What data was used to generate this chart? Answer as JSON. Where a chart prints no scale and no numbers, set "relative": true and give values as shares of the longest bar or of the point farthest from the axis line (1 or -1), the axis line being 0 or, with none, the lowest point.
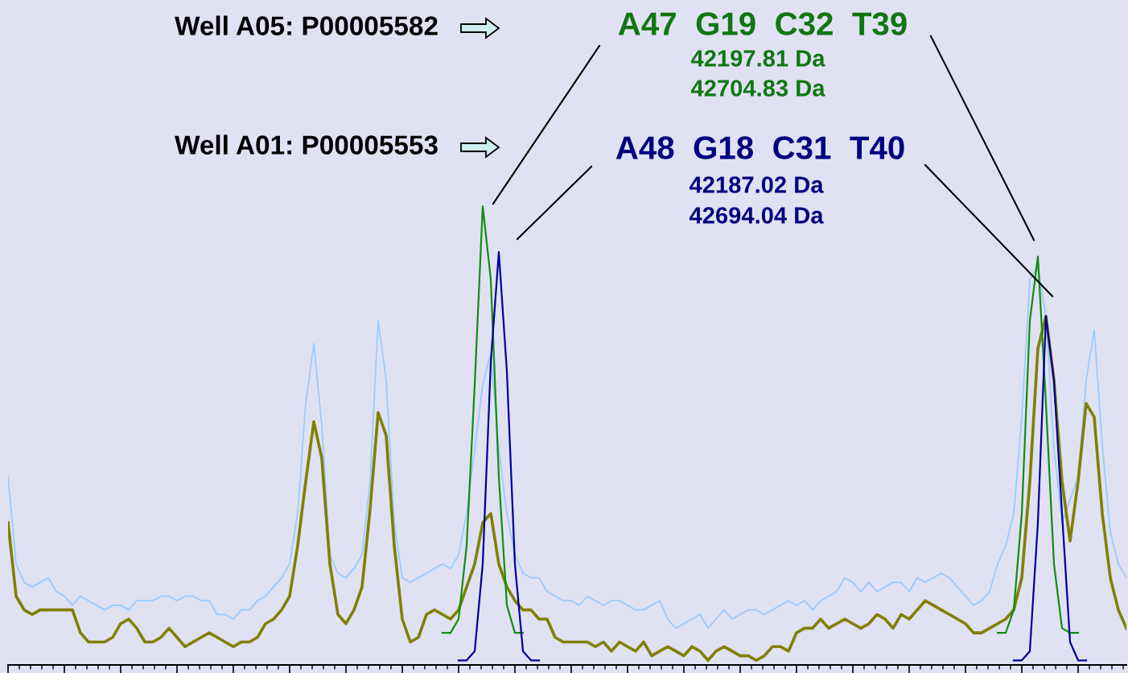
{
  "chart_data": {
    "type": "line",
    "relative": true,
    "grid": false,
    "marker": "none",
    "line_style": "solid",
    "categories": [
      null,
      null,
      null,
      null,
      null,
      null,
      null,
      null,
      null,
      null,
      null,
      null,
      null,
      null,
      null,
      null,
      null,
      null,
      null,
      null,
      null,
      null,
      null,
      null,
      null,
      null,
      null,
      null,
      null,
      null,
      null,
      null,
      null,
      null,
      null,
      null,
      null,
      null,
      null,
      null,
      null,
      null,
      null,
      null,
      null,
      null,
      null,
      null,
      null,
      null,
      null,
      null,
      null,
      null,
      null,
      null,
      null,
      null,
      null,
      null,
      null,
      null,
      null,
      null,
      null,
      null,
      null,
      null,
      null,
      null,
      null,
      null,
      null,
      null,
      null,
      null,
      null,
      null,
      null,
      null,
      null,
      null,
      null,
      null,
      null,
      null,
      null,
      null,
      null,
      null,
      null,
      null,
      null,
      null,
      null,
      null,
      null,
      null,
      null,
      null,
      null,
      null,
      null,
      null,
      null,
      null,
      null,
      null,
      null,
      null,
      null,
      null,
      null,
      null,
      null,
      null,
      null,
      null,
      null,
      null,
      null,
      null,
      null,
      null,
      null,
      null,
      null,
      null,
      null,
      null,
      null,
      null,
      null,
      null,
      null,
      null,
      null,
      null,
      null,
      null
    ],
    "series": [
      {
        "color": "#99ccff",
        "values": [
          0.41,
          0.22,
          0.18,
          0.17,
          0.18,
          0.19,
          0.16,
          0.15,
          0.13,
          0.15,
          0.14,
          0.13,
          0.12,
          0.13,
          0.13,
          0.12,
          0.14,
          0.14,
          0.14,
          0.15,
          0.15,
          0.14,
          0.15,
          0.15,
          0.14,
          0.14,
          0.11,
          0.11,
          0.1,
          0.12,
          0.12,
          0.14,
          0.15,
          0.17,
          0.19,
          0.22,
          0.33,
          0.57,
          0.7,
          0.52,
          0.24,
          0.2,
          0.19,
          0.21,
          0.24,
          0.4,
          0.75,
          0.62,
          0.31,
          0.19,
          0.18,
          0.19,
          0.2,
          0.21,
          0.22,
          0.21,
          0.24,
          0.33,
          0.47,
          0.61,
          0.68,
          0.47,
          0.33,
          0.24,
          0.2,
          0.19,
          0.19,
          0.16,
          0.15,
          0.14,
          0.14,
          0.13,
          0.15,
          0.14,
          0.13,
          0.14,
          0.14,
          0.13,
          0.12,
          0.12,
          0.13,
          0.14,
          0.1,
          0.08,
          0.09,
          0.1,
          0.11,
          0.08,
          0.1,
          0.12,
          0.1,
          0.11,
          0.12,
          0.12,
          0.11,
          0.12,
          0.13,
          0.14,
          0.13,
          0.14,
          0.12,
          0.14,
          0.15,
          0.16,
          0.19,
          0.18,
          0.16,
          0.18,
          0.16,
          0.17,
          0.18,
          0.18,
          0.16,
          0.19,
          0.18,
          0.19,
          0.2,
          0.19,
          0.17,
          0.15,
          0.13,
          0.14,
          0.16,
          0.22,
          0.26,
          0.33,
          0.54,
          0.84,
          0.87,
          0.76,
          0.47,
          0.31,
          0.36,
          0.41,
          0.62,
          0.73,
          0.48,
          0.29,
          0.22,
          0.19
        ]
      },
      {
        "color": "#808000",
        "values": [
          0.31,
          0.15,
          0.12,
          0.11,
          0.12,
          0.12,
          0.12,
          0.12,
          0.12,
          0.07,
          0.05,
          0.05,
          0.05,
          0.06,
          0.09,
          0.1,
          0.08,
          0.05,
          0.05,
          0.06,
          0.08,
          0.06,
          0.04,
          0.05,
          0.06,
          0.07,
          0.06,
          0.05,
          0.04,
          0.05,
          0.05,
          0.06,
          0.09,
          0.1,
          0.12,
          0.15,
          0.26,
          0.4,
          0.53,
          0.45,
          0.22,
          0.11,
          0.09,
          0.12,
          0.17,
          0.34,
          0.55,
          0.5,
          0.26,
          0.1,
          0.05,
          0.06,
          0.11,
          0.12,
          0.11,
          0.1,
          0.12,
          0.17,
          0.22,
          0.31,
          0.33,
          0.22,
          0.17,
          0.14,
          0.12,
          0.12,
          0.1,
          0.1,
          0.06,
          0.05,
          0.05,
          0.05,
          0.05,
          0.04,
          0.05,
          0.03,
          0.05,
          0.04,
          0.03,
          0.05,
          0.02,
          0.03,
          0.04,
          0.03,
          0.02,
          0.04,
          0.03,
          0.01,
          0.03,
          0.04,
          0.03,
          0.02,
          0.02,
          0.01,
          0.02,
          0.04,
          0.04,
          0.03,
          0.07,
          0.08,
          0.08,
          0.1,
          0.08,
          0.09,
          0.1,
          0.09,
          0.08,
          0.09,
          0.11,
          0.1,
          0.08,
          0.11,
          0.1,
          0.12,
          0.14,
          0.13,
          0.12,
          0.11,
          0.1,
          0.09,
          0.07,
          0.07,
          0.08,
          0.09,
          0.1,
          0.12,
          0.19,
          0.4,
          0.69,
          0.76,
          0.62,
          0.4,
          0.27,
          0.4,
          0.57,
          0.54,
          0.33,
          0.19,
          0.12,
          0.08
        ]
      },
      {
        "color": "#109010",
        "values": [
          null,
          null,
          null,
          null,
          null,
          null,
          null,
          null,
          null,
          null,
          null,
          null,
          null,
          null,
          null,
          null,
          null,
          null,
          null,
          null,
          null,
          null,
          null,
          null,
          null,
          null,
          null,
          null,
          null,
          null,
          null,
          null,
          null,
          null,
          null,
          null,
          null,
          null,
          null,
          null,
          null,
          null,
          null,
          null,
          null,
          null,
          null,
          null,
          null,
          null,
          null,
          null,
          null,
          null,
          0.07,
          0.07,
          0.1,
          0.26,
          0.61,
          1.0,
          0.84,
          0.41,
          0.13,
          0.07,
          0.07,
          null,
          null,
          null,
          null,
          null,
          null,
          null,
          null,
          null,
          null,
          null,
          null,
          null,
          null,
          null,
          null,
          null,
          null,
          null,
          null,
          null,
          null,
          null,
          null,
          null,
          null,
          null,
          null,
          null,
          null,
          null,
          null,
          null,
          null,
          null,
          null,
          null,
          null,
          null,
          null,
          null,
          null,
          null,
          null,
          null,
          null,
          null,
          null,
          null,
          null,
          null,
          null,
          null,
          null,
          null,
          null,
          null,
          null,
          0.07,
          0.07,
          0.12,
          0.33,
          0.75,
          0.89,
          0.57,
          0.22,
          0.08,
          0.07,
          0.07,
          null,
          null,
          null,
          null,
          null,
          null
        ]
      },
      {
        "color": "#000099",
        "values": [
          null,
          null,
          null,
          null,
          null,
          null,
          null,
          null,
          null,
          null,
          null,
          null,
          null,
          null,
          null,
          null,
          null,
          null,
          null,
          null,
          null,
          null,
          null,
          null,
          null,
          null,
          null,
          null,
          null,
          null,
          null,
          null,
          null,
          null,
          null,
          null,
          null,
          null,
          null,
          null,
          null,
          null,
          null,
          null,
          null,
          null,
          null,
          null,
          null,
          null,
          null,
          null,
          null,
          null,
          null,
          null,
          0.01,
          0.01,
          0.03,
          0.22,
          0.66,
          0.9,
          0.64,
          0.22,
          0.03,
          0.01,
          0.01,
          null,
          null,
          null,
          null,
          null,
          null,
          null,
          null,
          null,
          null,
          null,
          null,
          null,
          null,
          null,
          null,
          null,
          null,
          null,
          null,
          null,
          null,
          null,
          null,
          null,
          null,
          null,
          null,
          null,
          null,
          null,
          null,
          null,
          null,
          null,
          null,
          null,
          null,
          null,
          null,
          null,
          null,
          null,
          null,
          null,
          null,
          null,
          null,
          null,
          null,
          null,
          null,
          null,
          null,
          null,
          null,
          null,
          null,
          0.01,
          0.01,
          0.03,
          0.31,
          0.76,
          0.62,
          0.33,
          0.05,
          0.01,
          0.01,
          null,
          null,
          null,
          null,
          null
        ]
      }
    ],
    "annotations": [
      "Well A05: P00005582",
      "Well A01: P00005553",
      "A47  G19  C32  T39",
      "42197.81 Da",
      "42704.83 Da",
      "A48  G18  C31  T40",
      "42187.02 Da",
      "42694.04 Da"
    ]
  }
}
